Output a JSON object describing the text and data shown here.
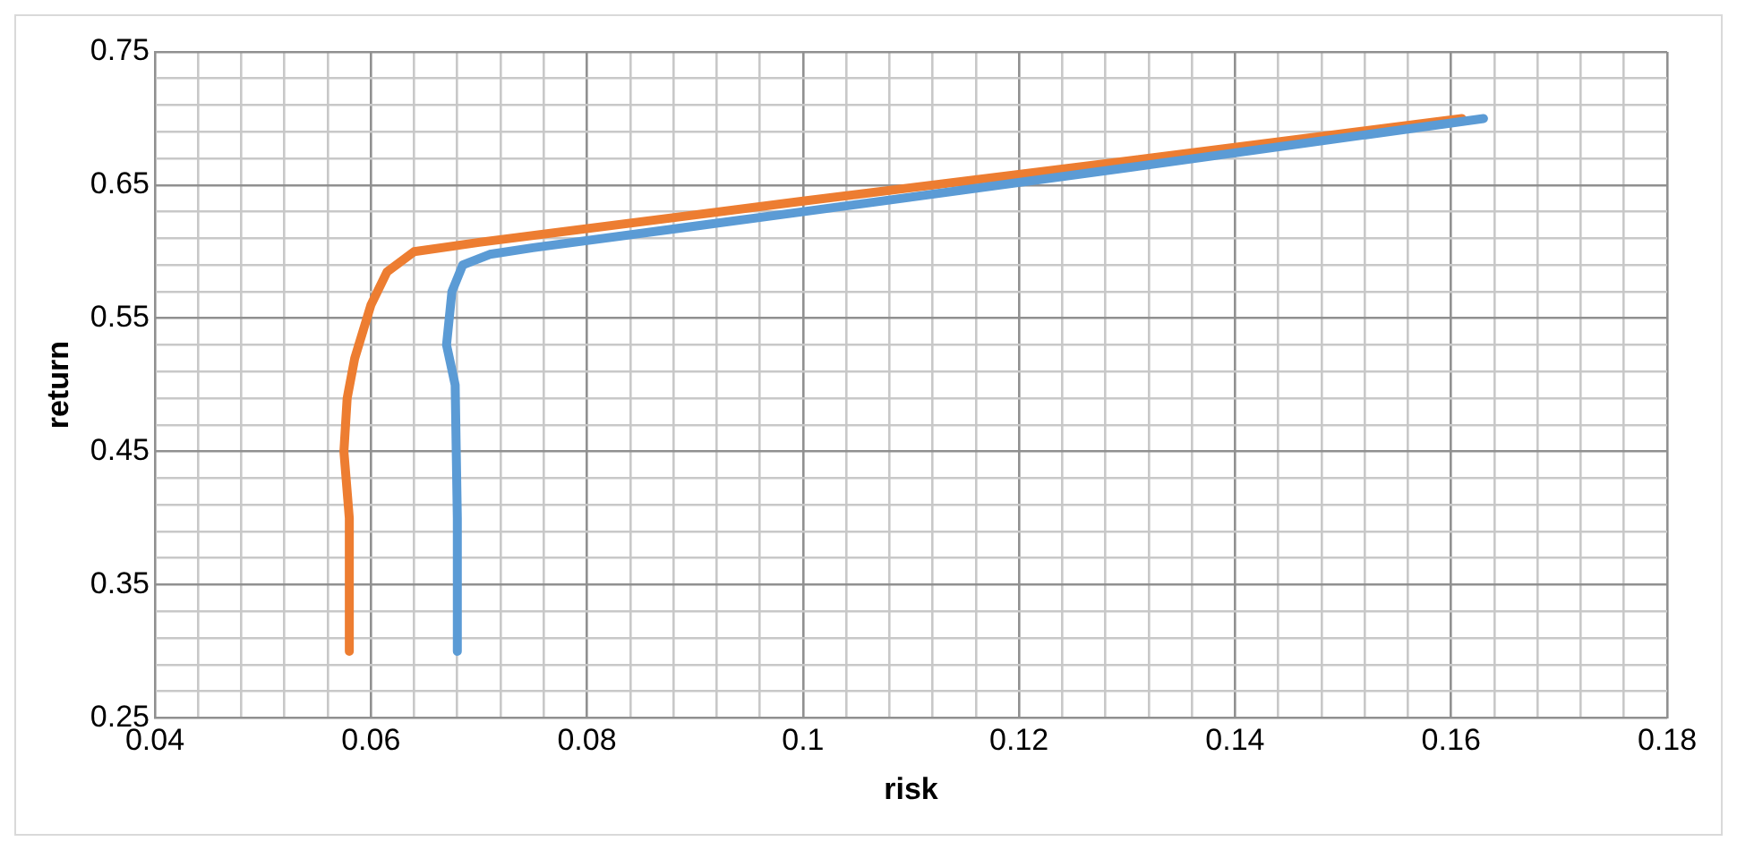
{
  "chart_data": {
    "type": "line",
    "xlabel": "risk",
    "ylabel": "return",
    "marker": "none",
    "grid": true,
    "legend": false,
    "xlim": [
      0.04,
      0.18
    ],
    "xticks": [
      0.04,
      {
        "value": 0.044,
        "label": null
      },
      {
        "value": 0.048,
        "label": null
      },
      {
        "value": 0.052,
        "label": null
      },
      {
        "value": 0.056,
        "label": null
      },
      0.06,
      {
        "value": 0.064,
        "label": null
      },
      {
        "value": 0.068,
        "label": null
      },
      {
        "value": 0.072,
        "label": null
      },
      {
        "value": 0.076,
        "label": null
      },
      0.08,
      {
        "value": 0.084,
        "label": null
      },
      {
        "value": 0.088,
        "label": null
      },
      {
        "value": 0.092,
        "label": null
      },
      {
        "value": 0.096,
        "label": null
      },
      0.1,
      {
        "value": 0.104,
        "label": null
      },
      {
        "value": 0.108,
        "label": null
      },
      {
        "value": 0.112,
        "label": null
      },
      {
        "value": 0.116,
        "label": null
      },
      0.12,
      {
        "value": 0.124,
        "label": null
      },
      {
        "value": 0.128,
        "label": null
      },
      {
        "value": 0.132,
        "label": null
      },
      {
        "value": 0.136,
        "label": null
      },
      0.14,
      {
        "value": 0.144,
        "label": null
      },
      {
        "value": 0.148,
        "label": null
      },
      {
        "value": 0.152,
        "label": null
      },
      {
        "value": 0.156,
        "label": null
      },
      0.16,
      {
        "value": 0.164,
        "label": null
      },
      {
        "value": 0.168,
        "label": null
      },
      {
        "value": 0.172,
        "label": null
      },
      {
        "value": 0.176,
        "label": null
      },
      0.18
    ],
    "ylim": [
      0.25,
      0.75
    ],
    "yticks": [
      0.25,
      {
        "value": 0.27,
        "label": null
      },
      {
        "value": 0.29,
        "label": null
      },
      {
        "value": 0.31,
        "label": null
      },
      {
        "value": 0.33,
        "label": null
      },
      0.35,
      {
        "value": 0.37,
        "label": null
      },
      {
        "value": 0.39,
        "label": null
      },
      {
        "value": 0.41,
        "label": null
      },
      {
        "value": 0.43,
        "label": null
      },
      0.45,
      {
        "value": 0.47,
        "label": null
      },
      {
        "value": 0.49,
        "label": null
      },
      {
        "value": 0.51,
        "label": null
      },
      {
        "value": 0.53,
        "label": null
      },
      0.55,
      {
        "value": 0.57,
        "label": null
      },
      {
        "value": 0.59,
        "label": null
      },
      {
        "value": 0.61,
        "label": null
      },
      {
        "value": 0.63,
        "label": null
      },
      0.65,
      {
        "value": 0.67,
        "label": null
      },
      {
        "value": 0.69,
        "label": null
      },
      {
        "value": 0.71,
        "label": null
      },
      {
        "value": 0.73,
        "label": null
      },
      0.75
    ],
    "series": [
      {
        "color": "#5b9bd5",
        "x": [
          0.068,
          0.068,
          0.0678,
          0.067,
          0.0675,
          0.0685,
          0.071,
          0.075,
          0.1,
          0.13,
          0.163
        ],
        "values": [
          0.3,
          0.4,
          0.5,
          0.53,
          0.57,
          0.59,
          0.598,
          0.603,
          0.63,
          0.663,
          0.7
        ]
      },
      {
        "color": "#ed7d31",
        "x": [
          0.058,
          0.058,
          0.0575,
          0.0578,
          0.0585,
          0.06,
          0.0615,
          0.064,
          0.07,
          0.1,
          0.13,
          0.161
        ],
        "values": [
          0.3,
          0.4,
          0.45,
          0.49,
          0.52,
          0.56,
          0.585,
          0.6,
          0.607,
          0.638,
          0.668,
          0.7
        ]
      }
    ]
  }
}
